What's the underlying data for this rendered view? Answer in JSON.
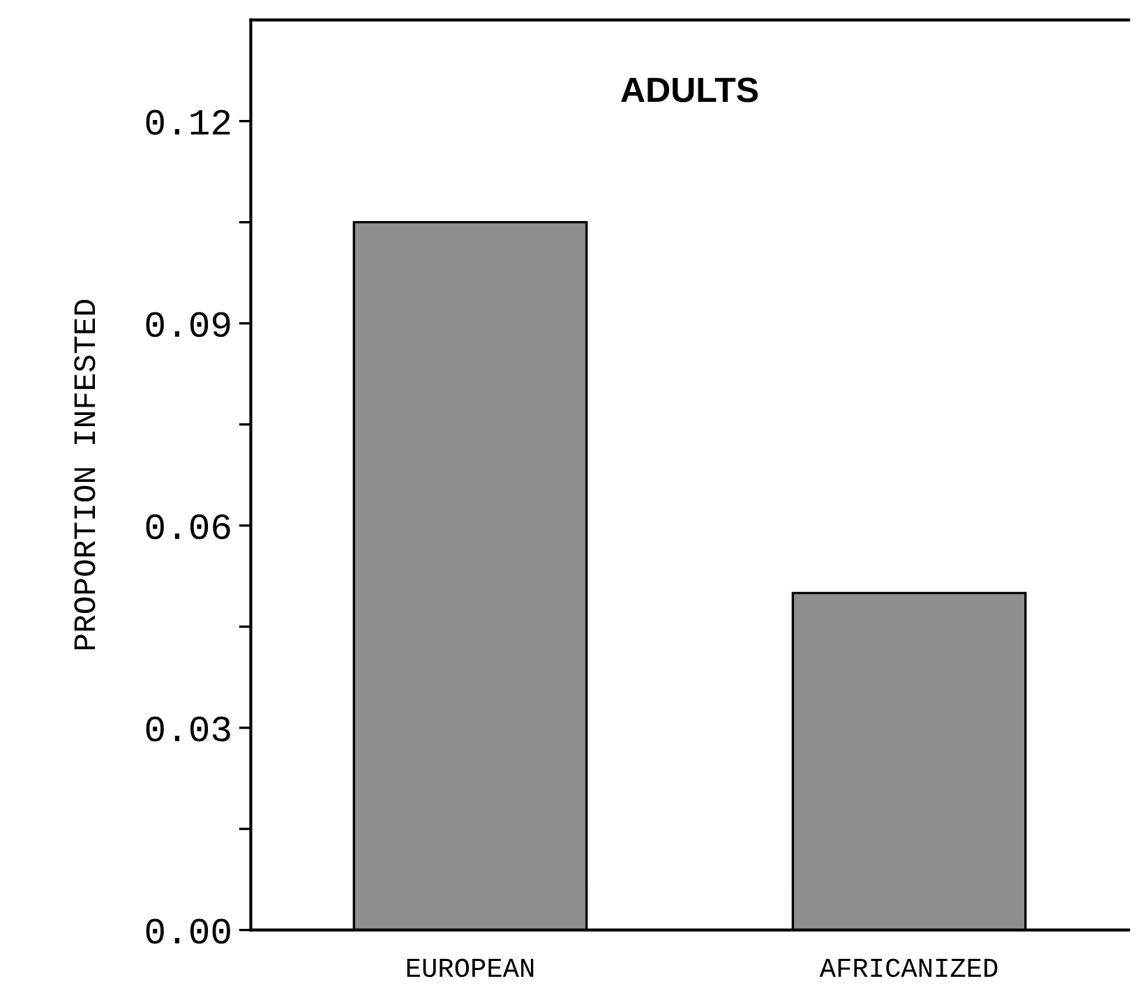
{
  "chart_data": {
    "type": "bar",
    "title": "ADULTS",
    "ylabel": "PROPORTION INFESTED",
    "categories": [
      "EUROPEAN",
      "AFRICANIZED"
    ],
    "values": [
      0.105,
      0.05
    ],
    "color": "#8f8f8f",
    "ylim": [
      0,
      0.135
    ],
    "yticks": [
      {
        "value": 0,
        "label": "0.00"
      },
      {
        "value": 0.015,
        "label": null
      },
      {
        "value": 0.03,
        "label": "0.03"
      },
      {
        "value": 0.045,
        "label": null
      },
      {
        "value": 0.06,
        "label": "0.06"
      },
      {
        "value": 0.075,
        "label": null
      },
      {
        "value": 0.09,
        "label": "0.09"
      },
      {
        "value": 0.105,
        "label": null
      },
      {
        "value": 0.12,
        "label": "0.12"
      }
    ],
    "grid": false,
    "legend": false
  }
}
